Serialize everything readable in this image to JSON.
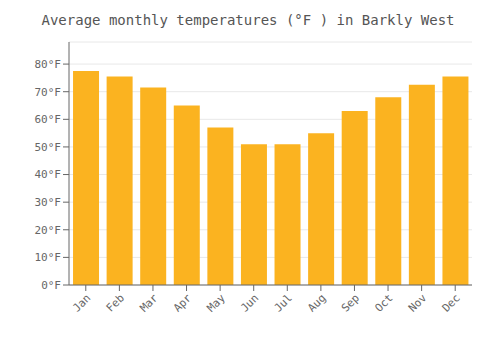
{
  "chart_data": {
    "type": "bar",
    "title": "Average monthly temperatures (°F ) in Barkly West",
    "categories": [
      "Jan",
      "Feb",
      "Mar",
      "Apr",
      "May",
      "Jun",
      "Jul",
      "Aug",
      "Sep",
      "Oct",
      "Nov",
      "Dec"
    ],
    "values": [
      77.5,
      75.5,
      71.5,
      65,
      57,
      51,
      51,
      55,
      63,
      68,
      72.5,
      75.5
    ],
    "color": "#FBB320",
    "ylim": [
      0,
      88
    ],
    "yticks": [
      {
        "value": 0,
        "label": "0°F"
      },
      {
        "value": 10,
        "label": "10°F"
      },
      {
        "value": 20,
        "label": "20°F"
      },
      {
        "value": 30,
        "label": "30°F"
      },
      {
        "value": 40,
        "label": "40°F"
      },
      {
        "value": 50,
        "label": "50°F"
      },
      {
        "value": 60,
        "label": "60°F"
      },
      {
        "value": 70,
        "label": "70°F"
      },
      {
        "value": 80,
        "label": "80°F"
      }
    ],
    "grid": true
  }
}
